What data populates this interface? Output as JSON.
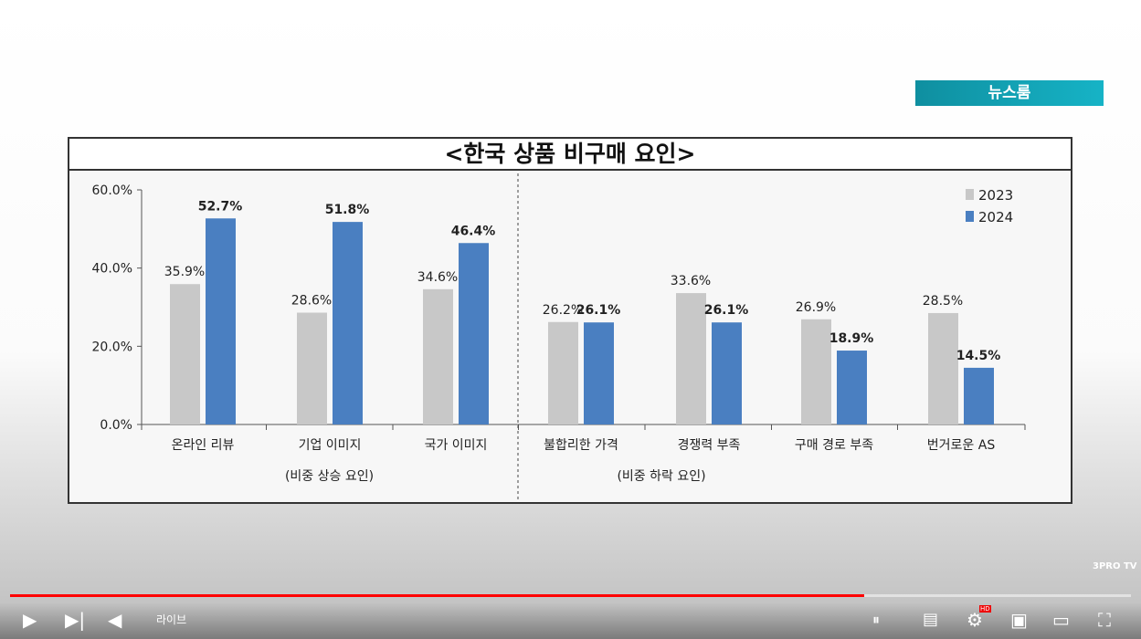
{
  "badge": "뉴스룸",
  "watermark": "3PRO TV",
  "player": {
    "live_label": "라이브",
    "progress_percent": 76.2,
    "progress_color": "#ff0000",
    "icons": [
      "play-icon",
      "next-icon",
      "volume-icon",
      "autoplay-toggle-icon",
      "subtitles-icon",
      "settings-icon",
      "miniplayer-icon",
      "theater-icon",
      "fullscreen-icon"
    ],
    "hd_badge": "HD"
  },
  "chart_data": {
    "type": "bar",
    "title": "<한국 상품 비구매 요인>",
    "categories": [
      "온라인 리뷰",
      "기업 이미지",
      "국가 이미지",
      "불합리한 가격",
      "경쟁력 부족",
      "구매 경로 부족",
      "번거로운 AS"
    ],
    "groups": [
      {
        "label": "(비중 상승 요인)",
        "count": 3
      },
      {
        "label": "(비중 하락 요인)",
        "count": 4
      }
    ],
    "series": [
      {
        "name": "2023",
        "color": "#c8c8c8",
        "values": [
          35.9,
          28.6,
          34.6,
          26.2,
          33.6,
          26.9,
          28.5
        ],
        "labels": [
          "35.9%",
          "28.6%",
          "34.6%",
          "26.2%",
          "33.6%",
          "26.9%",
          "28.5%"
        ]
      },
      {
        "name": "2024",
        "color": "#4a7fc1",
        "values": [
          52.7,
          51.8,
          46.4,
          26.1,
          26.1,
          18.9,
          14.5
        ],
        "labels": [
          "52.7%",
          "51.8%",
          "46.4%",
          "26.1%",
          "26.1%",
          "18.9%",
          "14.5%"
        ]
      }
    ],
    "yticks": [
      "0.0%",
      "20.0%",
      "40.0%",
      "60.0%"
    ],
    "ylim": [
      0,
      60
    ],
    "legend": "top-right",
    "grid": false
  }
}
